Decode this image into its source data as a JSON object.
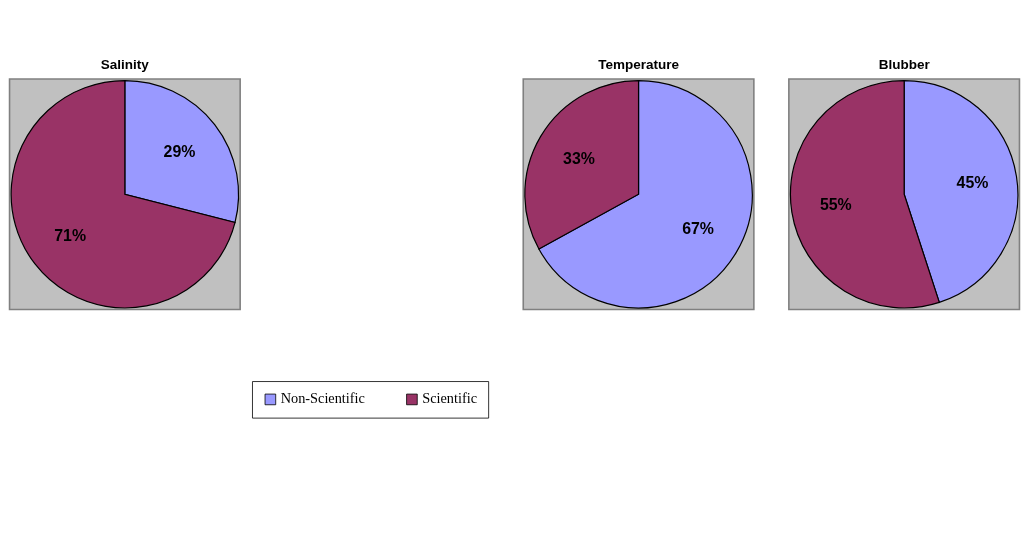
{
  "chart_data": [
    {
      "type": "pie",
      "title": "Salinity",
      "categories": [
        "Non-Scientific",
        "Scientific"
      ],
      "values": [
        29,
        71
      ],
      "value_labels": [
        "29%",
        "71%"
      ],
      "colors": [
        "#9999ff",
        "#993366"
      ],
      "legend": "bottom"
    },
    {
      "type": "pie",
      "title": "Temperature",
      "values": [
        67,
        33
      ],
      "value_labels": [
        "67%",
        "33%"
      ],
      "colors": [
        "#9999ff",
        "#993366"
      ]
    },
    {
      "type": "pie",
      "title": "Blubber",
      "values": [
        45,
        55
      ],
      "value_labels": [
        "45%",
        "55%"
      ],
      "colors": [
        "#9999ff",
        "#993366"
      ]
    }
  ]
}
